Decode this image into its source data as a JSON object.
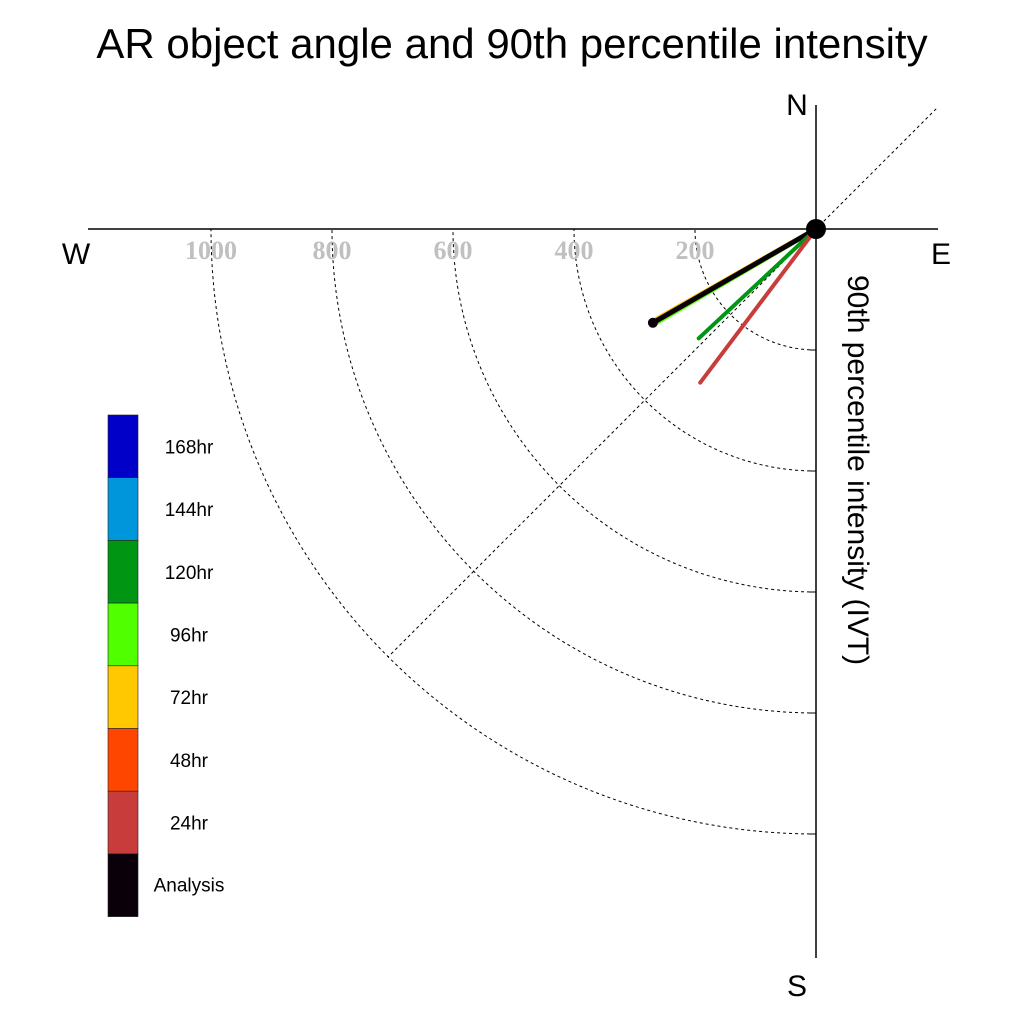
{
  "chart_data": {
    "type": "polar-vector",
    "title": "AR object angle and 90th percentile intensity",
    "radial_label": "90th percentile intensity (IVT)",
    "compass": {
      "north": "N",
      "south": "S",
      "east": "E",
      "west": "W"
    },
    "radial_ticks": [
      200,
      400,
      600,
      800,
      1000
    ],
    "radial_tick_labels": [
      "200",
      "400",
      "600",
      "800",
      "1000"
    ],
    "radial_max": 1200,
    "legend": [
      {
        "label": "168hr",
        "color": "#0000c8"
      },
      {
        "label": "144hr",
        "color": "#0096dc"
      },
      {
        "label": "120hr",
        "color": "#009614"
      },
      {
        "label": "96hr",
        "color": "#50ff00"
      },
      {
        "label": "72hr",
        "color": "#ffc800"
      },
      {
        "label": "48hr",
        "color": "#ff4600"
      },
      {
        "label": "24hr",
        "color": "#c83c3c"
      },
      {
        "label": "Analysis",
        "color": "#0a000a"
      }
    ],
    "series": [
      {
        "name": "72hr",
        "color": "#ffc800",
        "angle_deg": 240.5,
        "intensity": 305,
        "width": 5
      },
      {
        "name": "96hr",
        "color": "#50ff00",
        "angle_deg": 239.6,
        "intensity": 305,
        "width": 5
      },
      {
        "name": "Analysis",
        "color": "#0a000a",
        "angle_deg": 240.1,
        "intensity": 311,
        "width": 5
      },
      {
        "name": "120hr",
        "color": "#009614",
        "angle_deg": 227.0,
        "intensity": 265,
        "width": 4
      },
      {
        "name": "24hr",
        "color": "#c83c3c",
        "angle_deg": 217.0,
        "intensity": 318,
        "width": 4
      }
    ]
  }
}
